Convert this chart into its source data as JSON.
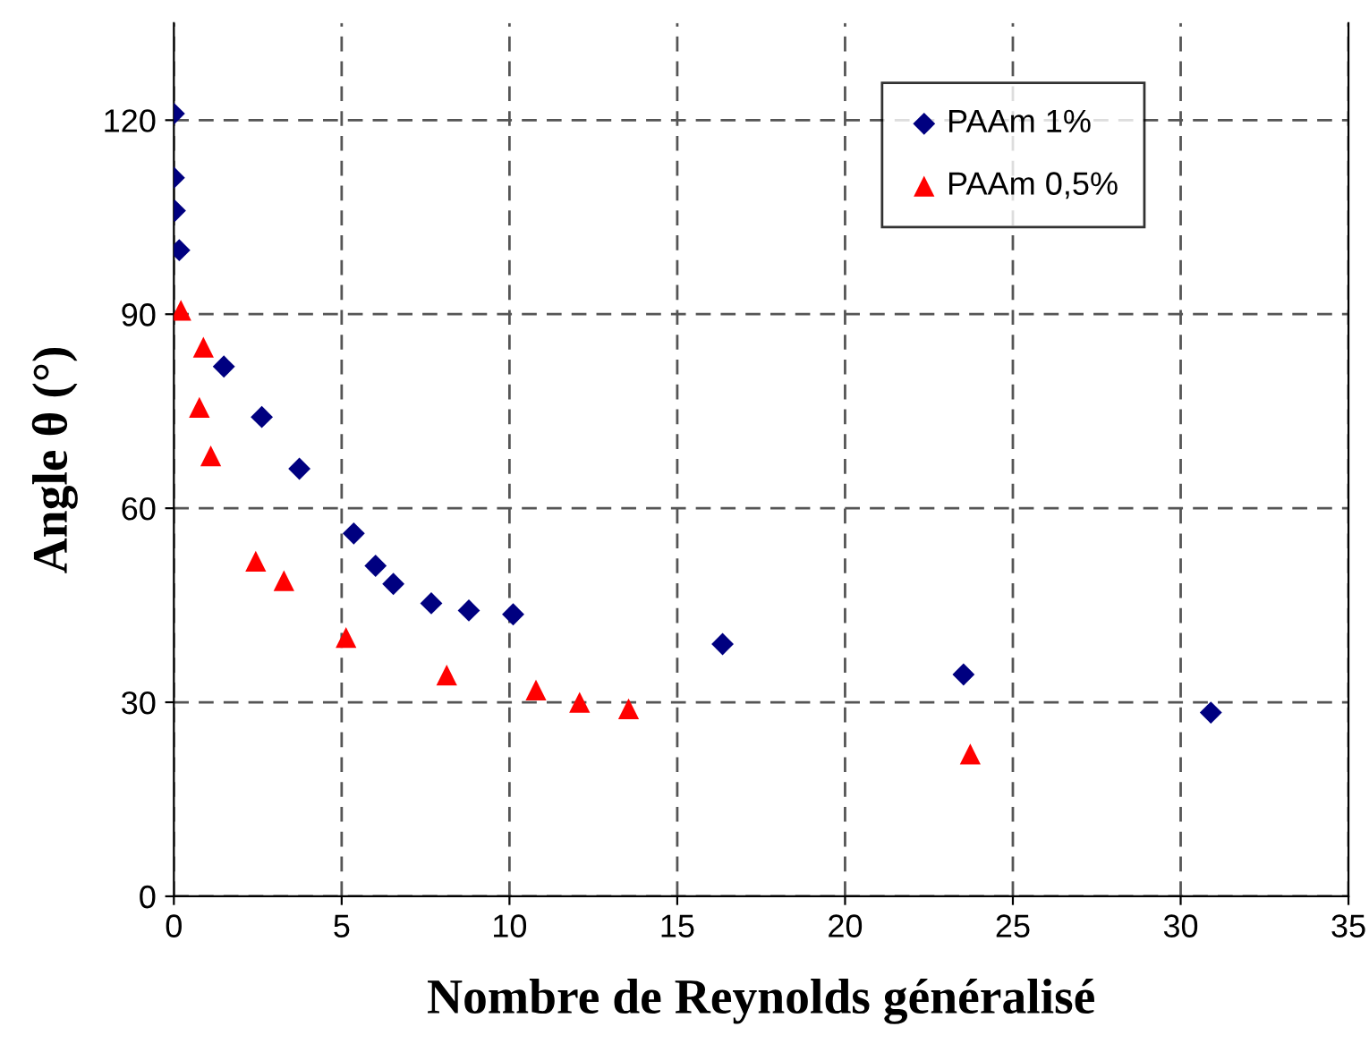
{
  "chart_data": {
    "type": "scatter",
    "xlabel": "Nombre de Reynolds généralisé",
    "ylabel": "Angle θ (°)",
    "xlim": [
      0,
      35
    ],
    "xticks": [
      0,
      5,
      10,
      15,
      20,
      25,
      30,
      35
    ],
    "ylim": [
      0,
      135
    ],
    "yticks": [
      0,
      30,
      60,
      90,
      120
    ],
    "grid": true,
    "legend": "top right",
    "series": [
      {
        "name": "PAAm 1%",
        "color": "#000080",
        "marker": "diamond",
        "x": [
          0,
          0,
          0.03,
          0.16,
          1.49,
          2.62,
          3.74,
          5.36,
          6.01,
          6.54,
          7.67,
          8.79,
          10.11,
          16.35,
          23.53,
          30.9
        ],
        "values": [
          121,
          111.1,
          106,
          99.9,
          81.9,
          74.1,
          66.1,
          56.1,
          51.1,
          48.3,
          45.3,
          44.2,
          43.6,
          39,
          34.3,
          28.4
        ]
      },
      {
        "name": "PAAm 0,5%",
        "color": "#ff0000",
        "marker": "triangle",
        "x": [
          0.21,
          0.88,
          0.76,
          1.1,
          2.44,
          3.28,
          5.13,
          8.13,
          10.79,
          12.09,
          13.55,
          23.73
        ],
        "values": [
          90.6,
          84.9,
          75.6,
          68.1,
          51.8,
          48.8,
          40,
          34.2,
          31.9,
          30,
          29,
          22
        ]
      }
    ]
  }
}
